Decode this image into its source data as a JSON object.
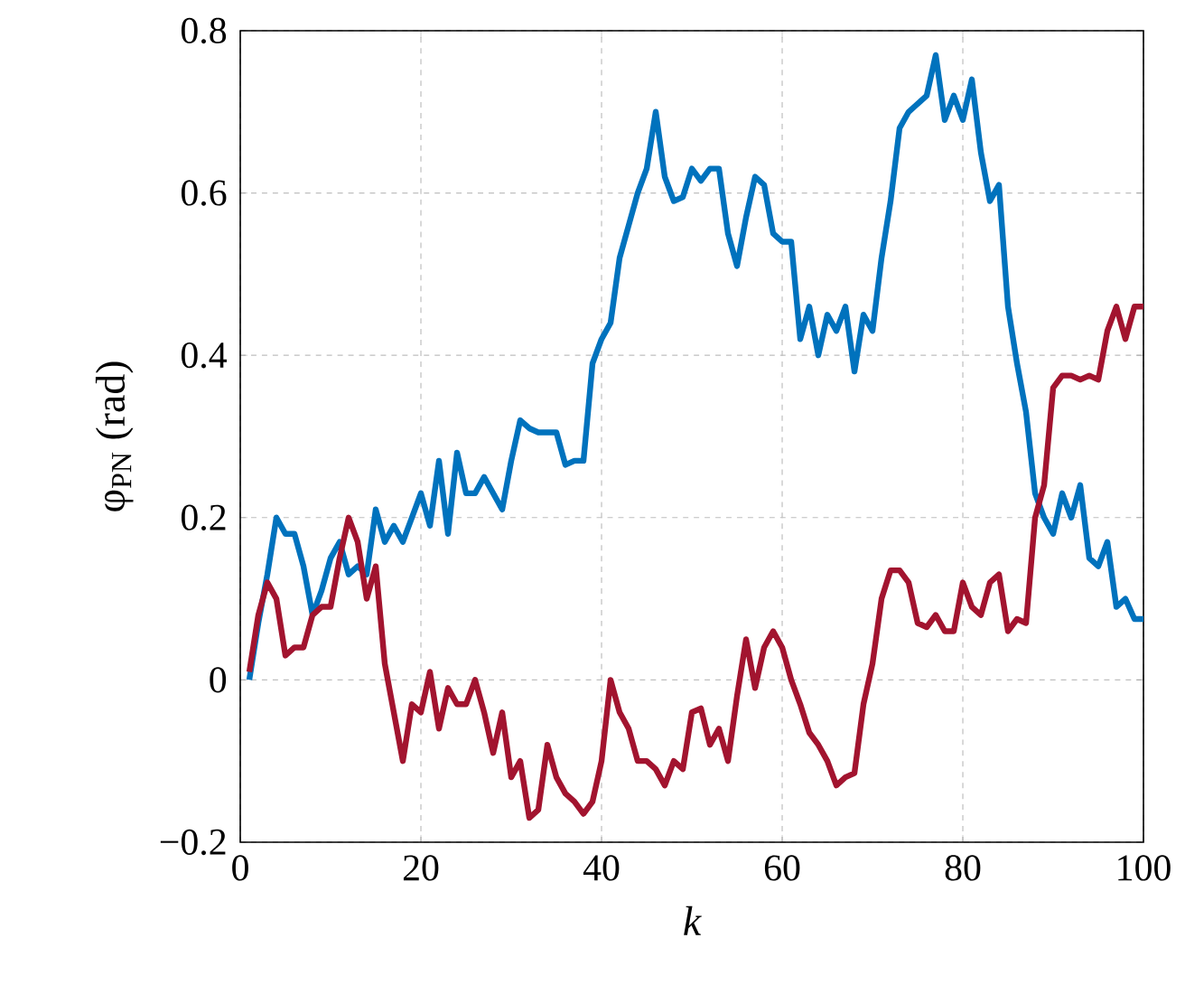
{
  "chart_data": {
    "type": "line",
    "xlabel": "k",
    "ylabel": "φ$_{PN}$ (rad)",
    "x": [
      1,
      2,
      3,
      4,
      5,
      6,
      7,
      8,
      9,
      10,
      11,
      12,
      13,
      14,
      15,
      16,
      17,
      18,
      19,
      20,
      21,
      22,
      23,
      24,
      25,
      26,
      27,
      28,
      29,
      30,
      31,
      32,
      33,
      34,
      35,
      36,
      37,
      38,
      39,
      40,
      41,
      42,
      43,
      44,
      45,
      46,
      47,
      48,
      49,
      50,
      51,
      52,
      53,
      54,
      55,
      56,
      57,
      58,
      59,
      60,
      61,
      62,
      63,
      64,
      65,
      66,
      67,
      68,
      69,
      70,
      71,
      72,
      73,
      74,
      75,
      76,
      77,
      78,
      79,
      80,
      81,
      82,
      83,
      84,
      85,
      86,
      87,
      88,
      89,
      90,
      91,
      92,
      93,
      94,
      95,
      96,
      97,
      98,
      99,
      100
    ],
    "series": [
      {
        "color": "#0072bd",
        "values": [
          0.0,
          0.07,
          0.13,
          0.2,
          0.18,
          0.18,
          0.14,
          0.08,
          0.11,
          0.15,
          0.17,
          0.13,
          0.14,
          0.13,
          0.21,
          0.17,
          0.19,
          0.17,
          0.2,
          0.23,
          0.19,
          0.27,
          0.18,
          0.28,
          0.23,
          0.23,
          0.25,
          0.23,
          0.21,
          0.27,
          0.32,
          0.31,
          0.305,
          0.305,
          0.305,
          0.265,
          0.27,
          0.27,
          0.39,
          0.42,
          0.44,
          0.52,
          0.56,
          0.6,
          0.63,
          0.7,
          0.62,
          0.59,
          0.595,
          0.63,
          0.615,
          0.63,
          0.63,
          0.55,
          0.51,
          0.57,
          0.62,
          0.61,
          0.55,
          0.54,
          0.54,
          0.42,
          0.46,
          0.4,
          0.45,
          0.43,
          0.46,
          0.38,
          0.45,
          0.43,
          0.52,
          0.59,
          0.68,
          0.7,
          0.71,
          0.72,
          0.77,
          0.69,
          0.72,
          0.69,
          0.74,
          0.65,
          0.59,
          0.61,
          0.46,
          0.39,
          0.33,
          0.23,
          0.2,
          0.18,
          0.23,
          0.2,
          0.24,
          0.15,
          0.14,
          0.17,
          0.09,
          0.1,
          0.075,
          0.075
        ]
      },
      {
        "color": "#a2142f",
        "values": [
          0.01,
          0.08,
          0.12,
          0.1,
          0.03,
          0.04,
          0.04,
          0.08,
          0.09,
          0.09,
          0.15,
          0.2,
          0.17,
          0.1,
          0.14,
          0.02,
          -0.04,
          -0.1,
          -0.03,
          -0.04,
          0.01,
          -0.06,
          -0.01,
          -0.03,
          -0.03,
          0.0,
          -0.04,
          -0.09,
          -0.04,
          -0.12,
          -0.1,
          -0.17,
          -0.16,
          -0.08,
          -0.12,
          -0.14,
          -0.15,
          -0.165,
          -0.15,
          -0.1,
          0.0,
          -0.04,
          -0.06,
          -0.1,
          -0.1,
          -0.11,
          -0.13,
          -0.1,
          -0.11,
          -0.04,
          -0.035,
          -0.08,
          -0.06,
          -0.1,
          -0.02,
          0.05,
          -0.01,
          0.04,
          0.06,
          0.04,
          0.0,
          -0.03,
          -0.065,
          -0.08,
          -0.1,
          -0.13,
          -0.12,
          -0.115,
          -0.03,
          0.02,
          0.1,
          0.135,
          0.135,
          0.12,
          0.07,
          0.065,
          0.08,
          0.06,
          0.06,
          0.12,
          0.09,
          0.08,
          0.12,
          0.13,
          0.06,
          0.075,
          0.07,
          0.2,
          0.24,
          0.36,
          0.375,
          0.375,
          0.37,
          0.375,
          0.37,
          0.43,
          0.46,
          0.42,
          0.46,
          0.46
        ]
      }
    ],
    "xlim": [
      0,
      100
    ],
    "ylim": [
      -0.2,
      0.8
    ],
    "xticks": [
      0,
      20,
      40,
      60,
      80,
      100
    ],
    "yticks": [
      {
        "value": -0.2,
        "label": "−0.2"
      },
      0,
      0.2,
      0.4,
      0.6,
      0.8
    ],
    "grid": true,
    "line_style": "solid",
    "marker": "none"
  }
}
